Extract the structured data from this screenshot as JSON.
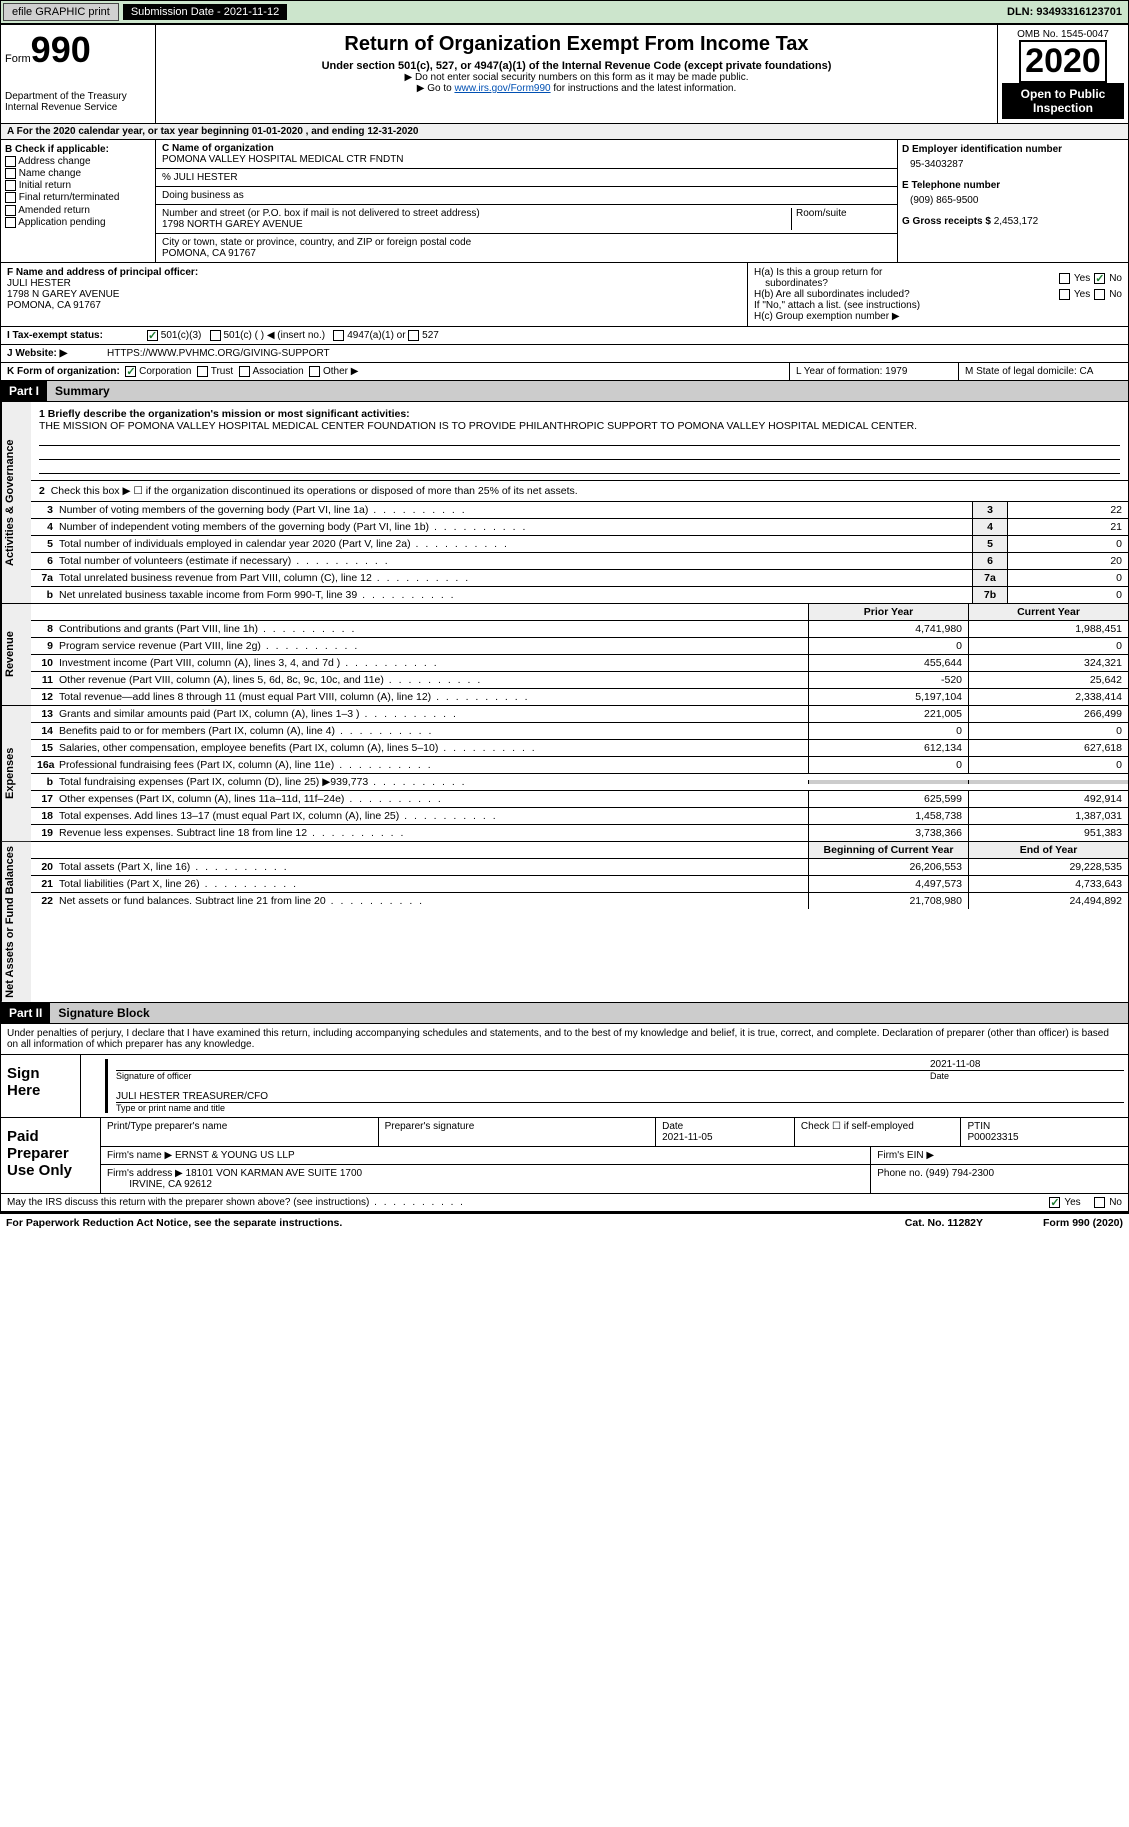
{
  "topbar": {
    "efile_label": "efile GRAPHIC print",
    "submission_label": "Submission Date - 2021-11-12",
    "dln_label": "DLN: 93493316123701"
  },
  "header": {
    "form_label": "Form",
    "form_number": "990",
    "dept": "Department of the Treasury",
    "irs": "Internal Revenue Service",
    "title": "Return of Organization Exempt From Income Tax",
    "subtitle": "Under section 501(c), 527, or 4947(a)(1) of the Internal Revenue Code (except private foundations)",
    "note1": "▶ Do not enter social security numbers on this form as it may be made public.",
    "note2_pre": "▶ Go to ",
    "note2_link": "www.irs.gov/Form990",
    "note2_post": " for instructions and the latest information.",
    "omb": "OMB No. 1545-0047",
    "year": "2020",
    "open_public": "Open to Public Inspection"
  },
  "row_a": "A For the 2020 calendar year, or tax year beginning 01-01-2020    , and ending 12-31-2020",
  "section_b": {
    "check_label": "B Check if applicable:",
    "checks": [
      "Address change",
      "Name change",
      "Initial return",
      "Final return/terminated",
      "Amended return",
      "Application pending"
    ],
    "c_label": "C Name of organization",
    "org_name": "POMONA VALLEY HOSPITAL MEDICAL CTR FNDTN",
    "care_of": "% JULI HESTER",
    "dba_label": "Doing business as",
    "addr_label": "Number and street (or P.O. box if mail is not delivered to street address)",
    "room_label": "Room/suite",
    "addr": "1798 NORTH GAREY AVENUE",
    "city_label": "City or town, state or province, country, and ZIP or foreign postal code",
    "city": "POMONA, CA  91767",
    "d_label": "D Employer identification number",
    "ein": "95-3403287",
    "e_label": "E Telephone number",
    "phone": "(909) 865-9500",
    "g_label": "G Gross receipts $",
    "gross": "2,453,172"
  },
  "section_f": {
    "f_label": "F Name and address of principal officer:",
    "name": "JULI HESTER",
    "addr1": "1798 N GAREY AVENUE",
    "addr2": "POMONA, CA  91767",
    "ha_label": "H(a)  Is this a group return for",
    "ha_sub": "subordinates?",
    "hb_label": "H(b)  Are all subordinates included?",
    "hb_note": "If \"No,\" attach a list. (see instructions)",
    "hc_label": "H(c)  Group exemption number ▶",
    "yes": "Yes",
    "no": "No"
  },
  "row_i": {
    "label": "I   Tax-exempt status:",
    "opts": [
      "501(c)(3)",
      "501(c) (  ) ◀ (insert no.)",
      "4947(a)(1) or",
      "527"
    ]
  },
  "row_j": {
    "label": "J   Website: ▶",
    "url": "HTTPS://WWW.PVHMC.ORG/GIVING-SUPPORT"
  },
  "row_k": {
    "label": "K Form of organization:",
    "opts": [
      "Corporation",
      "Trust",
      "Association",
      "Other ▶"
    ],
    "l_label": "L Year of formation: 1979",
    "m_label": "M State of legal domicile: CA"
  },
  "part1": {
    "part_label": "Part I",
    "title": "Summary",
    "l1_label": "1   Briefly describe the organization's mission or most significant activities:",
    "mission": "THE MISSION OF POMONA VALLEY HOSPITAL MEDICAL CENTER FOUNDATION IS TO PROVIDE PHILANTHROPIC SUPPORT TO POMONA VALLEY HOSPITAL MEDICAL CENTER.",
    "l2": "Check this box ▶ ☐ if the organization discontinued its operations or disposed of more than 25% of its net assets.",
    "vlabel_gov": "Activities & Governance",
    "vlabel_rev": "Revenue",
    "vlabel_exp": "Expenses",
    "vlabel_net": "Net Assets or Fund Balances",
    "lines_gov": [
      {
        "n": "3",
        "d": "Number of voting members of the governing body (Part VI, line 1a)",
        "b": "3",
        "v": "22"
      },
      {
        "n": "4",
        "d": "Number of independent voting members of the governing body (Part VI, line 1b)",
        "b": "4",
        "v": "21"
      },
      {
        "n": "5",
        "d": "Total number of individuals employed in calendar year 2020 (Part V, line 2a)",
        "b": "5",
        "v": "0"
      },
      {
        "n": "6",
        "d": "Total number of volunteers (estimate if necessary)",
        "b": "6",
        "v": "20"
      },
      {
        "n": "7a",
        "d": "Total unrelated business revenue from Part VIII, column (C), line 12",
        "b": "7a",
        "v": "0"
      },
      {
        "n": "b",
        "d": "Net unrelated business taxable income from Form 990-T, line 39",
        "b": "7b",
        "v": "0"
      }
    ],
    "py_label": "Prior Year",
    "cy_label": "Current Year",
    "lines_rev": [
      {
        "n": "8",
        "d": "Contributions and grants (Part VIII, line 1h)",
        "py": "4,741,980",
        "cy": "1,988,451"
      },
      {
        "n": "9",
        "d": "Program service revenue (Part VIII, line 2g)",
        "py": "0",
        "cy": "0"
      },
      {
        "n": "10",
        "d": "Investment income (Part VIII, column (A), lines 3, 4, and 7d )",
        "py": "455,644",
        "cy": "324,321"
      },
      {
        "n": "11",
        "d": "Other revenue (Part VIII, column (A), lines 5, 6d, 8c, 9c, 10c, and 11e)",
        "py": "-520",
        "cy": "25,642"
      },
      {
        "n": "12",
        "d": "Total revenue—add lines 8 through 11 (must equal Part VIII, column (A), line 12)",
        "py": "5,197,104",
        "cy": "2,338,414"
      }
    ],
    "lines_exp": [
      {
        "n": "13",
        "d": "Grants and similar amounts paid (Part IX, column (A), lines 1–3 )",
        "py": "221,005",
        "cy": "266,499"
      },
      {
        "n": "14",
        "d": "Benefits paid to or for members (Part IX, column (A), line 4)",
        "py": "0",
        "cy": "0"
      },
      {
        "n": "15",
        "d": "Salaries, other compensation, employee benefits (Part IX, column (A), lines 5–10)",
        "py": "612,134",
        "cy": "627,618"
      },
      {
        "n": "16a",
        "d": "Professional fundraising fees (Part IX, column (A), line 11e)",
        "py": "0",
        "cy": "0"
      },
      {
        "n": "b",
        "d": "Total fundraising expenses (Part IX, column (D), line 25) ▶939,773",
        "py": "",
        "cy": "",
        "grey": true
      },
      {
        "n": "17",
        "d": "Other expenses (Part IX, column (A), lines 11a–11d, 11f–24e)",
        "py": "625,599",
        "cy": "492,914"
      },
      {
        "n": "18",
        "d": "Total expenses. Add lines 13–17 (must equal Part IX, column (A), line 25)",
        "py": "1,458,738",
        "cy": "1,387,031"
      },
      {
        "n": "19",
        "d": "Revenue less expenses. Subtract line 18 from line 12",
        "py": "3,738,366",
        "cy": "951,383"
      }
    ],
    "boy_label": "Beginning of Current Year",
    "eoy_label": "End of Year",
    "lines_net": [
      {
        "n": "20",
        "d": "Total assets (Part X, line 16)",
        "py": "26,206,553",
        "cy": "29,228,535"
      },
      {
        "n": "21",
        "d": "Total liabilities (Part X, line 26)",
        "py": "4,497,573",
        "cy": "4,733,643"
      },
      {
        "n": "22",
        "d": "Net assets or fund balances. Subtract line 21 from line 20",
        "py": "21,708,980",
        "cy": "24,494,892"
      }
    ]
  },
  "part2": {
    "part_label": "Part II",
    "title": "Signature Block",
    "penalties": "Under penalties of perjury, I declare that I have examined this return, including accompanying schedules and statements, and to the best of my knowledge and belief, it is true, correct, and complete. Declaration of preparer (other than officer) is based on all information of which preparer has any knowledge.",
    "sign_here": "Sign Here",
    "sig_label": "Signature of officer",
    "sig_date": "2021-11-08",
    "date_label": "Date",
    "officer": "JULI HESTER  TREASURER/CFO",
    "officer_label": "Type or print name and title",
    "paid_label": "Paid Preparer Use Only",
    "prep_name_label": "Print/Type preparer's name",
    "prep_sig_label": "Preparer's signature",
    "prep_date_label": "Date",
    "prep_date": "2021-11-05",
    "check_self": "Check ☐ if self-employed",
    "ptin_label": "PTIN",
    "ptin": "P00023315",
    "firm_name_label": "Firm's name   ▶",
    "firm_name": "ERNST & YOUNG US LLP",
    "firm_ein_label": "Firm's EIN ▶",
    "firm_addr_label": "Firm's address ▶",
    "firm_addr": "18101 VON KARMAN AVE SUITE 1700",
    "firm_city": "IRVINE, CA  92612",
    "phone_label": "Phone no.",
    "phone": "(949) 794-2300",
    "discuss": "May the IRS discuss this return with the preparer shown above? (see instructions)",
    "yes": "Yes",
    "no": "No"
  },
  "footer": {
    "pra": "For Paperwork Reduction Act Notice, see the separate instructions.",
    "cat": "Cat. No. 11282Y",
    "form": "Form 990 (2020)"
  }
}
